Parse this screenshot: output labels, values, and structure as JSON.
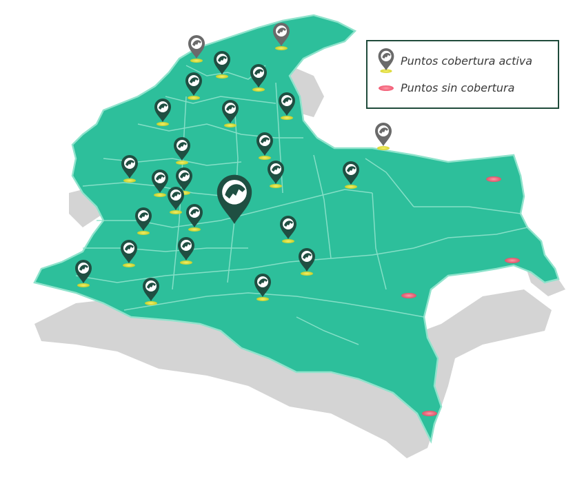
{
  "colors": {
    "land": "#2dbf9b",
    "border": "#8fe3cc",
    "shadow": "#d4d4d4",
    "pin_dark": "#1f4f42",
    "pin_gray": "#6a6a6a",
    "glow_active": "#e7e23a",
    "glow_none": "#f2607a",
    "legend_border": "#1f4a3a"
  },
  "legend": {
    "active_label": "Puntos cobertura activa",
    "inactive_label": "Puntos sin cobertura",
    "active_icon": "map-pin-icon",
    "inactive_icon": "red-dot-icon"
  },
  "map": {
    "region": "Colombia",
    "active_point_count": 29,
    "no_coverage_point_count": 4
  }
}
